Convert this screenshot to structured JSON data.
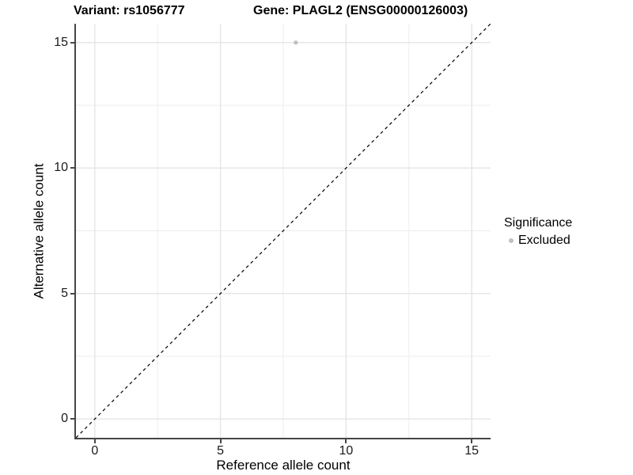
{
  "figure": {
    "title_variant": "Variant: rs1056777",
    "title_gene": "Gene: PLAGL2 (ENSG00000126003)"
  },
  "legend": {
    "title": "Significance",
    "items": [
      {
        "label": "Excluded",
        "color": "#c0c0c0"
      }
    ]
  },
  "chart_data": {
    "type": "scatter",
    "title": "Variant: rs1056777   Gene: PLAGL2 (ENSG00000126003)",
    "xlabel": "Reference allele count",
    "ylabel": "Alternative allele count",
    "xlim": [
      -0.75,
      15.75
    ],
    "ylim": [
      -0.75,
      15.75
    ],
    "x_ticks": [
      0,
      5,
      10,
      15
    ],
    "y_ticks": [
      0,
      5,
      10,
      15
    ],
    "x_minor_ticks": [
      2.5,
      7.5,
      12.5
    ],
    "y_minor_ticks": [
      2.5,
      7.5,
      12.5
    ],
    "grid": "major+minor",
    "legend_position": "right",
    "series": [
      {
        "name": "Excluded",
        "color": "#c0c0c0",
        "points": [
          [
            8,
            15
          ]
        ]
      }
    ],
    "annotations": [
      {
        "type": "identity_line",
        "equation": "y = x",
        "style": "dashed",
        "color": "#000000"
      }
    ]
  },
  "style": {
    "grid_major_color": "#e3e3e3",
    "grid_minor_color": "#ededed",
    "axis_line_color": "#464646",
    "text_color": "#1a1a1a",
    "point_color": "#c0c0c0"
  }
}
